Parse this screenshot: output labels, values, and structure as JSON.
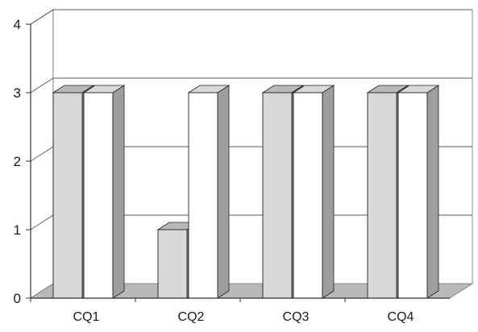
{
  "chart_data": {
    "type": "bar",
    "title": "",
    "xlabel": "",
    "ylabel": "",
    "categories": [
      "CQ1",
      "CQ2",
      "CQ3",
      "CQ4"
    ],
    "series": [
      {
        "values": [
          3,
          1,
          3,
          3
        ],
        "color": "#d8d8d8"
      },
      {
        "values": [
          3,
          3,
          3,
          3
        ],
        "color": "#ffffff"
      }
    ],
    "ylim": [
      0,
      4
    ],
    "yticks": [
      "0",
      "1",
      "2",
      "3",
      "4"
    ],
    "grid": true,
    "three_d": true,
    "legend": "none"
  }
}
